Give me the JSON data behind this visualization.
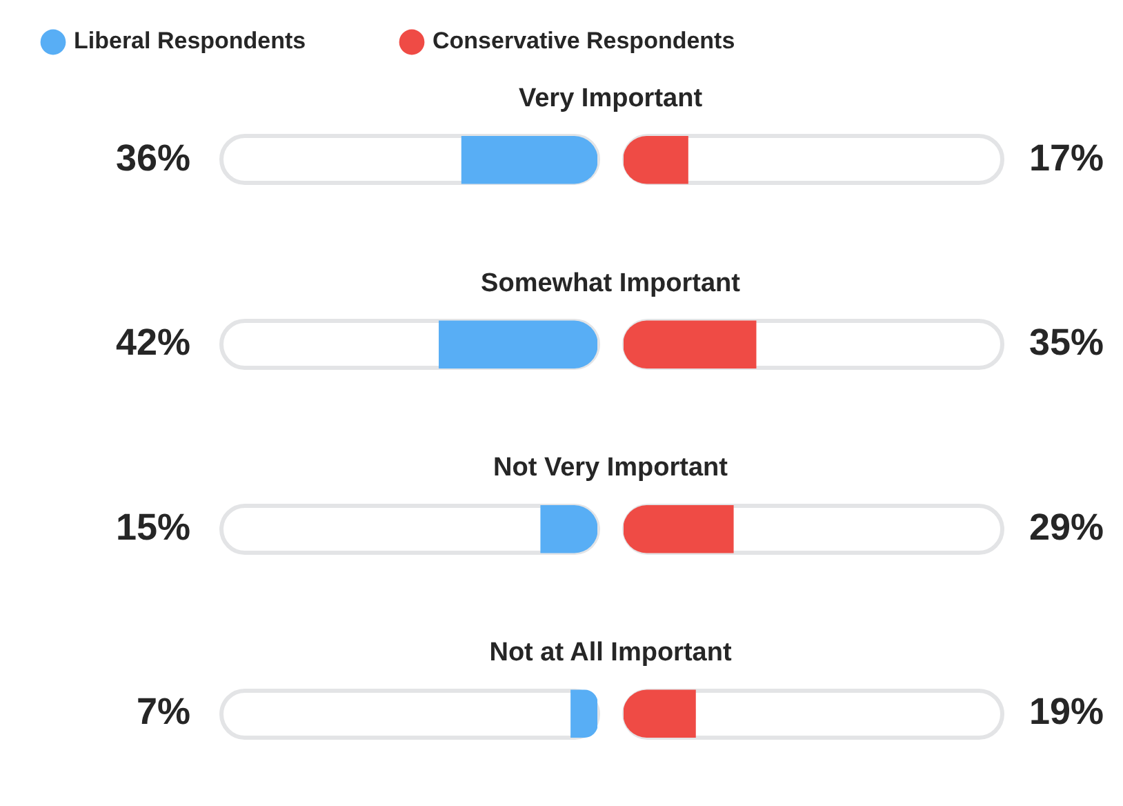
{
  "chart_data": [
    {
      "type": "bar",
      "orientation": "horizontal",
      "categories": [
        "Very Important",
        "Somewhat Important",
        "Not Very Important",
        "Not at All Important"
      ],
      "series": [
        {
          "name": "Liberal Respondents",
          "color": "#58aef5",
          "values": [
            36,
            42,
            15,
            7
          ],
          "value_labels": [
            "36%",
            "42%",
            "15%",
            "7%"
          ]
        }
      ],
      "xlim": [
        100,
        0
      ],
      "legend": "top left",
      "tick_labels": "y"
    },
    {
      "type": "bar",
      "orientation": "horizontal",
      "categories": [
        null,
        null,
        null,
        null
      ],
      "series": [
        {
          "name": "Conservative Respondents",
          "color": "#ef4b45",
          "values": [
            17,
            35,
            29,
            19
          ],
          "value_labels": [
            "17%",
            "35%",
            "29%",
            "19%"
          ]
        }
      ],
      "xlim": [
        0,
        100
      ],
      "legend": "top left",
      "tick_labels": false
    }
  ]
}
